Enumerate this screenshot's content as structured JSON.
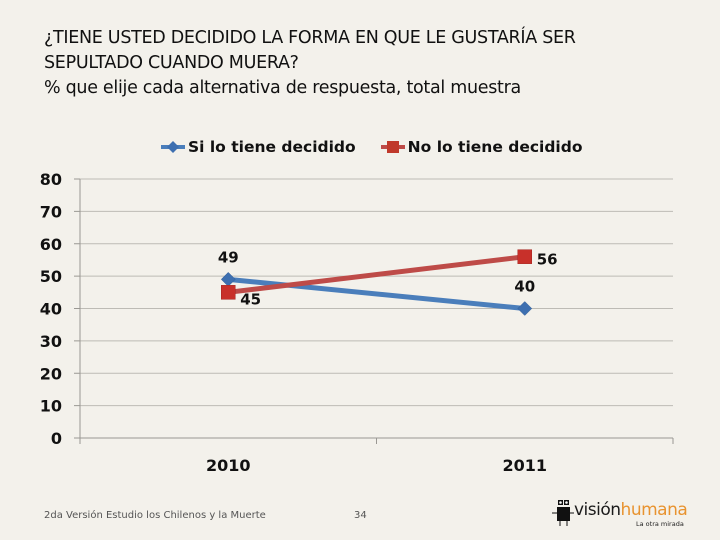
{
  "slide": {
    "title_line1": "¿TIENE USTED DECIDIDO LA FORMA EN QUE LE GUSTARÍA SER",
    "title_line2": "SEPULTADO CUANDO MUERA?",
    "subtitle": "% que elije cada alternativa de respuesta, total muestra",
    "footer_left": "2da Versión Estudio los Chilenos y la Muerte",
    "page_number": "34",
    "logo": {
      "word_dark": "visión",
      "word_accent": "humana",
      "tagline": "La otra mirada",
      "icon": "camera-robot-icon",
      "accent_color": "#e8932f"
    }
  },
  "chart_data": {
    "type": "line",
    "title": "¿TIENE USTED DECIDIDO LA FORMA EN QUE LE GUSTARÍA SER SEPULTADO CUANDO MUERA?",
    "subtitle": "% que elije cada alternativa de respuesta, total muestra",
    "categories": [
      "2010",
      "2011"
    ],
    "xlabel": "",
    "ylabel": "",
    "ylim": [
      0,
      80
    ],
    "yticks": [
      0,
      10,
      20,
      30,
      40,
      50,
      60,
      70,
      80
    ],
    "grid": true,
    "legend_position": "top",
    "series": [
      {
        "name": "Si lo tiene decidido",
        "values": [
          49,
          40
        ],
        "color": "#4a7ebb",
        "marker": "diamond",
        "labels": [
          "49",
          "40"
        ]
      },
      {
        "name": "No lo tiene decidido",
        "values": [
          45,
          56
        ],
        "color": "#be4b48",
        "marker": "square",
        "labels": [
          "45",
          "56"
        ]
      }
    ]
  }
}
